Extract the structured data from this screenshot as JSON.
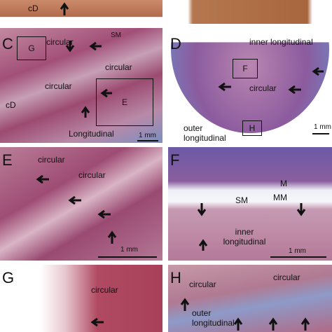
{
  "panel_a": {
    "labels": [
      "cD"
    ]
  },
  "panel_c": {
    "letter": "C",
    "boxes": [
      "G",
      "E"
    ],
    "labels": [
      "circular",
      "SM",
      "circular",
      "circular",
      "cD",
      "Longitudinal"
    ],
    "scale": "1 mm"
  },
  "panel_d": {
    "letter": "D",
    "labels": [
      "inner longitudinal",
      "circular",
      "outer longitudinal"
    ],
    "boxes": [
      "F",
      "H"
    ],
    "scale": "1 mm"
  },
  "panel_e": {
    "letter": "E",
    "labels": [
      "circular",
      "circular"
    ],
    "scale": "1 mm"
  },
  "panel_f": {
    "letter": "F",
    "labels": [
      "M",
      "MM",
      "SM",
      "inner longitudinal"
    ],
    "scale": "1 mm"
  },
  "panel_g": {
    "letter": "G",
    "labels": [
      "circular"
    ]
  },
  "panel_h": {
    "letter": "H",
    "labels": [
      "circular",
      "circular",
      "outer longitudinal"
    ]
  }
}
